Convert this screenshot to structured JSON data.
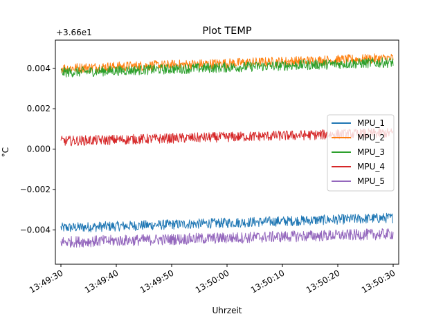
{
  "chart_data": {
    "type": "line",
    "title": "Plot TEMP",
    "xlabel": "Uhrzeit",
    "ylabel": "°C",
    "offset_label": "+3.66e1",
    "y_offset": 36.6,
    "x_range": [
      "13:49:29",
      "13:50:31"
    ],
    "y_range": [
      -0.0057,
      0.0054
    ],
    "x_ticks": [
      "13:49:30",
      "13:49:40",
      "13:49:50",
      "13:50:00",
      "13:50:10",
      "13:50:20",
      "13:50:30"
    ],
    "y_ticks": [
      -0.004,
      -0.002,
      0.0,
      0.002,
      0.004
    ],
    "y_tick_labels": [
      "−0.004",
      "−0.002",
      "0.000",
      "0.002",
      "0.004"
    ],
    "grid": false,
    "legend_placement": "center-right",
    "x_start": "13:49:30",
    "x_end": "13:50:30",
    "series": [
      {
        "name": "MPU_1",
        "color": "#1f77b4",
        "start": -0.0039,
        "end": -0.0034,
        "spread": 0.00025
      },
      {
        "name": "MPU_2",
        "color": "#ff7f0e",
        "start": 0.004,
        "end": 0.0045,
        "spread": 0.00025
      },
      {
        "name": "MPU_3",
        "color": "#2ca02c",
        "start": 0.0038,
        "end": 0.0043,
        "spread": 0.00025
      },
      {
        "name": "MPU_4",
        "color": "#d62728",
        "start": 0.0004,
        "end": 0.0008,
        "spread": 0.00025
      },
      {
        "name": "MPU_5",
        "color": "#9467bd",
        "start": -0.0046,
        "end": -0.0042,
        "spread": 0.00028
      }
    ]
  }
}
